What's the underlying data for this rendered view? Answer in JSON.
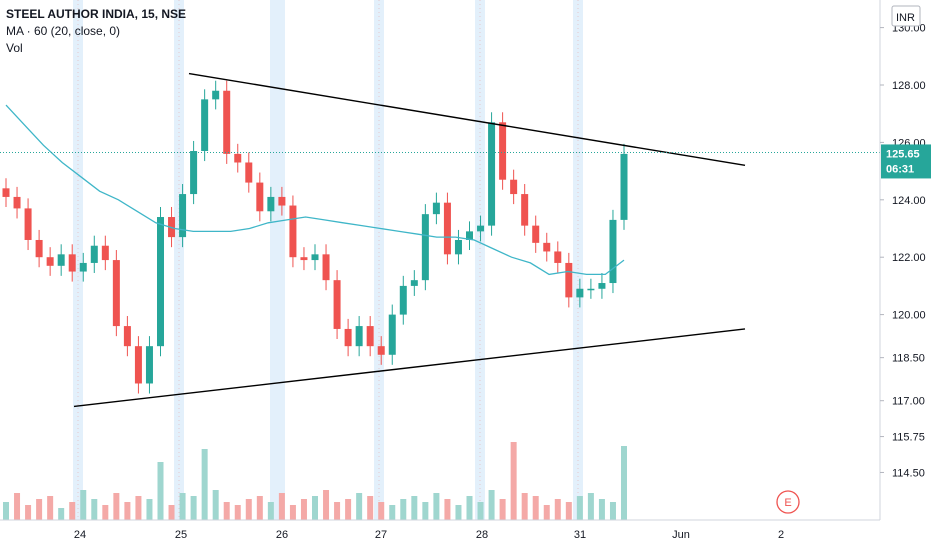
{
  "legend": {
    "title": "STEEL AUTHOR INDIA, 15, NSE",
    "ma": "MA · 60 (20, close, 0)",
    "vol": "Vol"
  },
  "currency": "INR",
  "price_badge": {
    "price": "125.65",
    "countdown": "06:31"
  },
  "event_marker": "E",
  "colors": {
    "up": "#26a69a",
    "down": "#ef5350",
    "ma": "#3fb6c8",
    "trendline": "#000000",
    "price_line": "#26a69a",
    "session": "#e3f0fb"
  },
  "chart_data": {
    "type": "candlestick",
    "y_tick_labels": [
      "130.00",
      "128.00",
      "126.00",
      "124.00",
      "122.00",
      "120.00",
      "118.50",
      "117.00",
      "115.75",
      "114.50"
    ],
    "x_tick_labels": [
      "24",
      "25",
      "26",
      "27",
      "28",
      "31",
      "Jun",
      "2"
    ],
    "last_price": 125.65,
    "series": [
      {
        "name": "Price (close, approx.)",
        "values": [
          124.1,
          123.7,
          122.6,
          122.0,
          121.7,
          122.1,
          121.5,
          121.8,
          122.4,
          121.9,
          119.6,
          118.9,
          117.6,
          118.9,
          123.4,
          122.7,
          124.2,
          125.7,
          127.5,
          127.8,
          125.6,
          125.3,
          124.6,
          123.6,
          124.1,
          123.8,
          122.0,
          121.9,
          122.1,
          121.2,
          119.5,
          118.9,
          119.6,
          118.9,
          118.6,
          120.0,
          121.0,
          121.2,
          123.5,
          123.9,
          122.1,
          122.6,
          122.9,
          123.1,
          126.7,
          124.7,
          124.2,
          123.1,
          122.5,
          122.2,
          121.8,
          120.6,
          120.9,
          120.9,
          121.1,
          123.3,
          125.6
        ]
      },
      {
        "name": "MA · 60",
        "values": [
          127.3,
          126.6,
          125.9,
          125.3,
          124.8,
          124.3,
          124.0,
          123.6,
          123.2,
          123.0,
          122.9,
          122.9,
          122.9,
          123.0,
          123.2,
          123.3,
          123.4,
          123.3,
          123.2,
          123.1,
          123.0,
          122.9,
          122.8,
          122.7,
          122.7,
          122.6,
          122.3,
          122.0,
          121.8,
          121.4,
          121.5,
          121.4,
          121.4,
          121.9
        ]
      }
    ],
    "upper_trendline": {
      "from": [
        "25",
        128.4
      ],
      "to": [
        "2",
        125.2
      ]
    },
    "lower_trendline": {
      "from": [
        "24",
        116.8
      ],
      "to": [
        "2",
        119.5
      ]
    }
  }
}
